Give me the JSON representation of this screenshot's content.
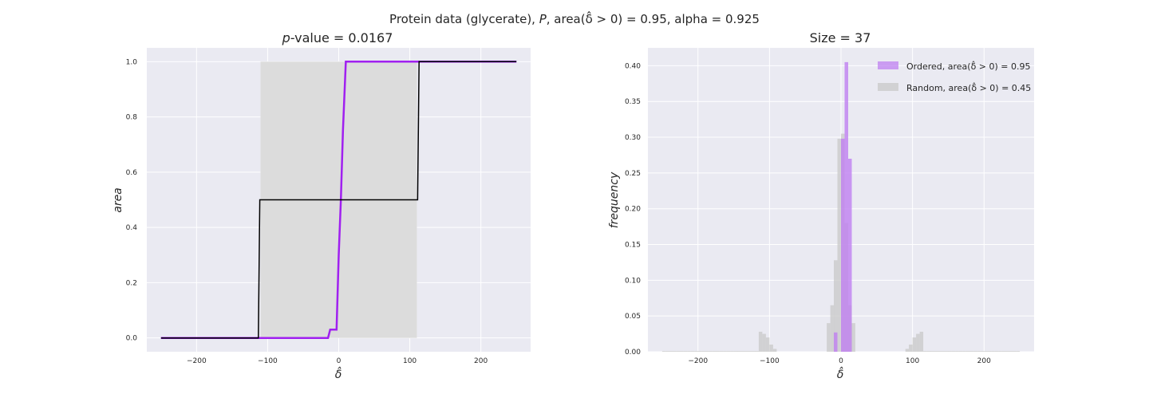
{
  "figure": {
    "suptitle_prefix": "Protein data (glycerate), ",
    "suptitle_var": "P",
    "suptitle_suffix": ", area(δ̂ > 0) = 0.95, alpha = 0.925"
  },
  "chart_data": [
    {
      "type": "line",
      "title_prefix": "p",
      "title_suffix": "-value = 0.0167",
      "xlabel": "δ̂",
      "ylabel": "area",
      "xlim": [
        -270,
        270
      ],
      "ylim": [
        -0.05,
        1.05
      ],
      "xticks": [
        -200,
        -100,
        0,
        100,
        200
      ],
      "yticks": [
        0.0,
        0.2,
        0.4,
        0.6,
        0.8,
        1.0
      ],
      "xtick_labels": [
        "−200",
        "−100",
        "0",
        "100",
        "200"
      ],
      "ytick_labels": [
        "0.0",
        "0.2",
        "0.4",
        "0.6",
        "0.8",
        "1.0"
      ],
      "grid": true,
      "band": {
        "x0": -110,
        "x1": 110,
        "y0": 0.0,
        "y1": 1.0,
        "color": "#dcdcdc"
      },
      "series": [
        {
          "color": "#a020f0",
          "x": [
            -250,
            -15,
            -12,
            -8,
            -3,
            0,
            3,
            6,
            10,
            250
          ],
          "y": [
            0,
            0,
            0.03,
            0.03,
            0.03,
            0.3,
            0.5,
            0.75,
            1.0,
            1.0
          ]
        },
        {
          "color": "#000000",
          "x": [
            -250,
            -113,
            -111,
            111,
            113,
            250
          ],
          "y": [
            0,
            0,
            0.5,
            0.5,
            1.0,
            1.0
          ]
        }
      ]
    },
    {
      "type": "bar",
      "title": "Size = 37",
      "xlabel": "δ̂",
      "ylabel": "frequency",
      "xlim": [
        -270,
        270
      ],
      "ylim": [
        0,
        0.425
      ],
      "xticks": [
        -200,
        -100,
        0,
        100,
        200
      ],
      "yticks": [
        0.0,
        0.05,
        0.1,
        0.15,
        0.2,
        0.25,
        0.3,
        0.35,
        0.4
      ],
      "xtick_labels": [
        "−200",
        "−100",
        "0",
        "100",
        "200"
      ],
      "ytick_labels": [
        "0.00",
        "0.05",
        "0.10",
        "0.15",
        "0.20",
        "0.25",
        "0.30",
        "0.35",
        "0.40"
      ],
      "grid": true,
      "legend_position": "top-right",
      "bin_width": 5,
      "series": [
        {
          "name": "Random, area(δ̂ > 0) = 0.45",
          "color": "#c8c8c8",
          "bins": [
            [
              -250,
              0.001
            ],
            [
              -245,
              0.001
            ],
            [
              -240,
              0.001
            ],
            [
              -235,
              0.001
            ],
            [
              -230,
              0.001
            ],
            [
              -225,
              0.001
            ],
            [
              -220,
              0.001
            ],
            [
              -215,
              0.001
            ],
            [
              -210,
              0.001
            ],
            [
              -205,
              0.001
            ],
            [
              -200,
              0.001
            ],
            [
              -195,
              0.001
            ],
            [
              -190,
              0.001
            ],
            [
              -185,
              0.001
            ],
            [
              -180,
              0.001
            ],
            [
              -175,
              0.001
            ],
            [
              -170,
              0.001
            ],
            [
              -165,
              0.001
            ],
            [
              -160,
              0.001
            ],
            [
              -155,
              0.001
            ],
            [
              -150,
              0.001
            ],
            [
              -145,
              0.001
            ],
            [
              -140,
              0.001
            ],
            [
              -135,
              0.001
            ],
            [
              -130,
              0.001
            ],
            [
              -125,
              0.001
            ],
            [
              -120,
              0.001
            ],
            [
              -115,
              0.028
            ],
            [
              -110,
              0.025
            ],
            [
              -105,
              0.02
            ],
            [
              -100,
              0.01
            ],
            [
              -95,
              0.004
            ],
            [
              -20,
              0.04
            ],
            [
              -15,
              0.065
            ],
            [
              -10,
              0.128
            ],
            [
              -5,
              0.298
            ],
            [
              0,
              0.305
            ],
            [
              5,
              0.18
            ],
            [
              10,
              0.065
            ],
            [
              15,
              0.04
            ],
            [
              90,
              0.004
            ],
            [
              95,
              0.01
            ],
            [
              100,
              0.02
            ],
            [
              105,
              0.025
            ],
            [
              110,
              0.028
            ],
            [
              115,
              0.001
            ],
            [
              120,
              0.001
            ],
            [
              125,
              0.001
            ],
            [
              130,
              0.001
            ],
            [
              135,
              0.001
            ],
            [
              140,
              0.001
            ],
            [
              145,
              0.001
            ],
            [
              150,
              0.001
            ],
            [
              155,
              0.001
            ],
            [
              160,
              0.001
            ],
            [
              165,
              0.001
            ],
            [
              170,
              0.001
            ],
            [
              175,
              0.001
            ],
            [
              180,
              0.001
            ],
            [
              185,
              0.001
            ],
            [
              190,
              0.001
            ],
            [
              195,
              0.001
            ],
            [
              200,
              0.001
            ],
            [
              205,
              0.001
            ],
            [
              210,
              0.001
            ],
            [
              215,
              0.001
            ],
            [
              220,
              0.001
            ],
            [
              225,
              0.001
            ],
            [
              230,
              0.001
            ],
            [
              235,
              0.001
            ],
            [
              240,
              0.001
            ],
            [
              245,
              0.001
            ]
          ]
        },
        {
          "name": "Ordered, area(δ̂ > 0) = 0.95",
          "color": "#bf80f0",
          "bins": [
            [
              -10,
              0.027
            ],
            [
              -5,
              0.0
            ],
            [
              0,
              0.298
            ],
            [
              5,
              0.405
            ],
            [
              10,
              0.27
            ]
          ]
        }
      ]
    }
  ]
}
